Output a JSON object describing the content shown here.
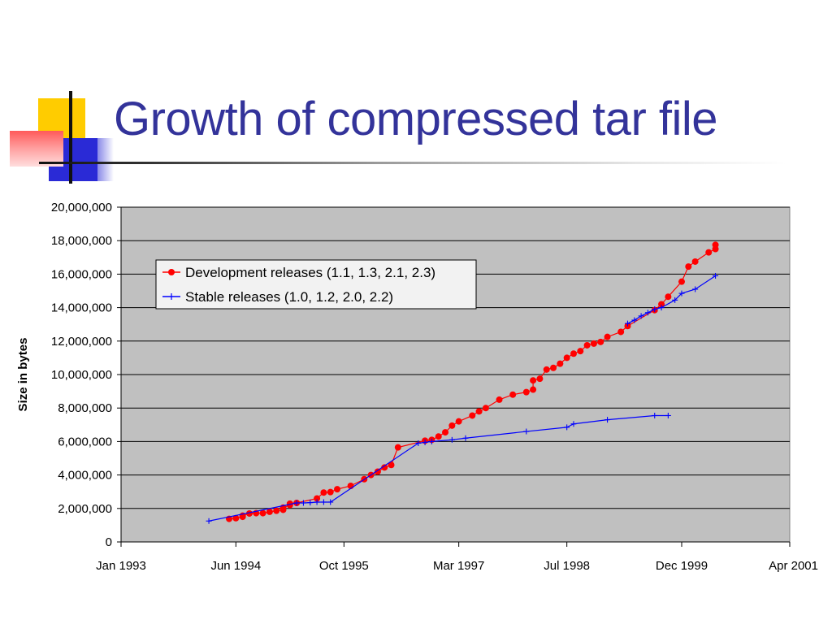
{
  "slide": {
    "title": "Growth of compressed tar file"
  },
  "colors": {
    "title": "#33339a",
    "plot_background": "#c0c0c0",
    "dev_series": "#ff0000",
    "stable_series": "#0000ff",
    "deco_yellow": "#ffcc00",
    "deco_blue": "#2a2ad6",
    "deco_red": "#ff5a5a"
  },
  "chart_data": {
    "type": "line",
    "title": "",
    "xlabel": "",
    "ylabel": "Size in bytes",
    "x_axis_type": "date",
    "xlim": [
      "1993-01",
      "2001-04"
    ],
    "ylim": [
      0,
      20000000
    ],
    "y_ticks": [
      0,
      2000000,
      4000000,
      6000000,
      8000000,
      10000000,
      12000000,
      14000000,
      16000000,
      18000000,
      20000000
    ],
    "y_tick_labels": [
      "0",
      "2,000,000",
      "4,000,000",
      "6,000,000",
      "8,000,000",
      "10,000,000",
      "12,000,000",
      "14,000,000",
      "16,000,000",
      "18,000,000",
      "20,000,000"
    ],
    "x_ticks": [
      "1993-01",
      "1994-06",
      "1995-10",
      "1997-03",
      "1998-07",
      "1999-12",
      "2001-04"
    ],
    "x_tick_labels": [
      "Jan 1993",
      "Jun 1994",
      "Oct 1995",
      "Mar 1997",
      "Jul 1998",
      "Dec 1999",
      "Apr 2001"
    ],
    "grid": "horizontal",
    "legend_position": "top-left",
    "series": [
      {
        "name": "Development releases (1.1, 1.3, 2.1, 2.3)",
        "color": "#ff0000",
        "marker": "circle",
        "points": [
          [
            "1994-05",
            1380000
          ],
          [
            "1994-06",
            1420000
          ],
          [
            "1994-07",
            1500000
          ],
          [
            "1994-07",
            1570000
          ],
          [
            "1994-08",
            1700000
          ],
          [
            "1994-09",
            1720000
          ],
          [
            "1994-10",
            1720000
          ],
          [
            "1994-11",
            1800000
          ],
          [
            "1994-12",
            1860000
          ],
          [
            "1995-01",
            1920000
          ],
          [
            "1995-01",
            2050000
          ],
          [
            "1995-02",
            2200000
          ],
          [
            "1995-02",
            2290000
          ],
          [
            "1995-03",
            2330000
          ],
          [
            "1995-06",
            2600000
          ],
          [
            "1995-07",
            2950000
          ],
          [
            "1995-08",
            2980000
          ],
          [
            "1995-09",
            3150000
          ],
          [
            "1995-11",
            3350000
          ],
          [
            "1996-01",
            3750000
          ],
          [
            "1996-02",
            4000000
          ],
          [
            "1996-03",
            4200000
          ],
          [
            "1996-04",
            4450000
          ],
          [
            "1996-05",
            4600000
          ],
          [
            "1996-06",
            5650000
          ],
          [
            "1996-10",
            6050000
          ],
          [
            "1996-11",
            6100000
          ],
          [
            "1996-12",
            6300000
          ],
          [
            "1997-01",
            6550000
          ],
          [
            "1997-02",
            6950000
          ],
          [
            "1997-03",
            7200000
          ],
          [
            "1997-05",
            7550000
          ],
          [
            "1997-06",
            7800000
          ],
          [
            "1997-07",
            8000000
          ],
          [
            "1997-09",
            8500000
          ],
          [
            "1997-11",
            8800000
          ],
          [
            "1998-01",
            8950000
          ],
          [
            "1998-02",
            9100000
          ],
          [
            "1998-02",
            9650000
          ],
          [
            "1998-03",
            9750000
          ],
          [
            "1998-04",
            10300000
          ],
          [
            "1998-05",
            10400000
          ],
          [
            "1998-06",
            10650000
          ],
          [
            "1998-07",
            11000000
          ],
          [
            "1998-08",
            11250000
          ],
          [
            "1998-09",
            11400000
          ],
          [
            "1998-10",
            11750000
          ],
          [
            "1998-11",
            11850000
          ],
          [
            "1998-12",
            11950000
          ],
          [
            "1999-01",
            12250000
          ],
          [
            "1999-03",
            12550000
          ],
          [
            "1999-04",
            12900000
          ],
          [
            "1999-08",
            13850000
          ],
          [
            "1999-09",
            14200000
          ],
          [
            "1999-10",
            14650000
          ],
          [
            "1999-12",
            15550000
          ],
          [
            "2000-01",
            16450000
          ],
          [
            "2000-02",
            16750000
          ],
          [
            "2000-04",
            17300000
          ],
          [
            "2000-05",
            17500000
          ],
          [
            "2000-05",
            17750000
          ]
        ]
      },
      {
        "name": "Stable releases (1.0, 1.2, 2.0, 2.2)",
        "color": "#0000ff",
        "marker": "plus",
        "points": [
          [
            "1994-02",
            1250000
          ],
          [
            "1995-03",
            2330000
          ],
          [
            "1995-04",
            2330000
          ],
          [
            "1995-05",
            2350000
          ],
          [
            "1995-06",
            2380000
          ],
          [
            "1995-07",
            2380000
          ],
          [
            "1995-08",
            2380000
          ],
          [
            "1996-09",
            5900000
          ],
          [
            "1996-10",
            5950000
          ],
          [
            "1996-11",
            6000000
          ],
          [
            "1997-02",
            6100000
          ],
          [
            "1997-04",
            6200000
          ],
          [
            "1998-01",
            6600000
          ],
          [
            "1998-07",
            6850000
          ],
          [
            "1998-08",
            7050000
          ],
          [
            "1999-01",
            7300000
          ],
          [
            "1999-08",
            7550000
          ],
          [
            "1999-10",
            7550000
          ],
          [
            "1999-04",
            13050000
          ],
          [
            "1999-05",
            13250000
          ],
          [
            "1999-06",
            13500000
          ],
          [
            "1999-07",
            13700000
          ],
          [
            "1999-08",
            13900000
          ],
          [
            "1999-09",
            14000000
          ],
          [
            "1999-11",
            14450000
          ],
          [
            "1999-12",
            14850000
          ],
          [
            "2000-02",
            15100000
          ],
          [
            "2000-05",
            15900000
          ]
        ]
      }
    ]
  }
}
